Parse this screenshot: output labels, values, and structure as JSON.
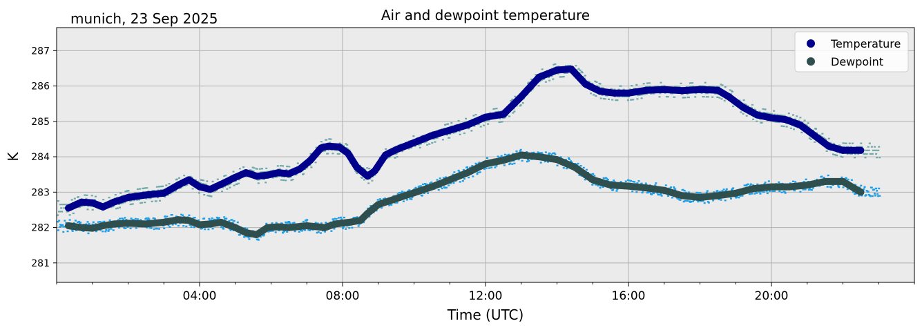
{
  "chart_data": {
    "type": "line",
    "title": "Air and dewpoint temperature",
    "subtitle": "munich, 23 Sep 2025",
    "xlabel": "Time (UTC)",
    "ylabel": "K",
    "xlim_hours": [
      0,
      24
    ],
    "ylim": [
      280.45,
      287.65
    ],
    "grid": true,
    "legend_position": "top-right",
    "x_ticks": [
      {
        "hour": 4,
        "label": "04:00"
      },
      {
        "hour": 8,
        "label": "08:00"
      },
      {
        "hour": 12,
        "label": "12:00"
      },
      {
        "hour": 16,
        "label": "16:00"
      },
      {
        "hour": 20,
        "label": "20:00"
      }
    ],
    "y_ticks": [
      {
        "value": 281,
        "label": "281"
      },
      {
        "value": 282,
        "label": "282"
      },
      {
        "value": 283,
        "label": "283"
      },
      {
        "value": 284,
        "label": "284"
      },
      {
        "value": 285,
        "label": "285"
      },
      {
        "value": 286,
        "label": "286"
      },
      {
        "value": 287,
        "label": "287"
      }
    ],
    "series": [
      {
        "name": "Temperature",
        "color": "#00008b",
        "raw_color": "#6fa8a8",
        "x": [
          0.33,
          0.7,
          1.0,
          1.3,
          1.6,
          2.0,
          2.5,
          3.0,
          3.4,
          3.7,
          4.0,
          4.3,
          4.6,
          5.0,
          5.3,
          5.6,
          5.9,
          6.2,
          6.5,
          6.8,
          7.1,
          7.4,
          7.6,
          7.9,
          8.15,
          8.4,
          8.7,
          8.9,
          9.2,
          9.5,
          10.0,
          10.5,
          11.0,
          11.5,
          12.0,
          12.5,
          13.0,
          13.5,
          14.0,
          14.4,
          14.8,
          15.2,
          15.6,
          16.0,
          16.5,
          17.0,
          17.5,
          18.0,
          18.5,
          18.8,
          19.2,
          19.6,
          20.0,
          20.4,
          20.8,
          21.2,
          21.6,
          22.0,
          22.5
        ],
        "values": [
          282.55,
          282.72,
          282.7,
          282.58,
          282.72,
          282.85,
          282.92,
          282.97,
          283.2,
          283.35,
          283.15,
          283.08,
          283.22,
          283.42,
          283.55,
          283.45,
          283.48,
          283.55,
          283.52,
          283.65,
          283.9,
          284.25,
          284.3,
          284.28,
          284.1,
          283.7,
          283.45,
          283.6,
          284.05,
          284.2,
          284.4,
          284.6,
          284.75,
          284.9,
          285.12,
          285.2,
          285.7,
          286.25,
          286.45,
          286.48,
          286.05,
          285.85,
          285.8,
          285.8,
          285.88,
          285.9,
          285.87,
          285.9,
          285.88,
          285.7,
          285.4,
          285.18,
          285.1,
          285.05,
          284.9,
          284.6,
          284.3,
          284.18,
          284.18
        ]
      },
      {
        "name": "Dewpoint",
        "color": "#2f4f4f",
        "raw_color": "#1e9ee8",
        "x": [
          0.33,
          0.7,
          1.0,
          1.3,
          1.6,
          2.0,
          2.5,
          3.0,
          3.4,
          3.7,
          4.0,
          4.3,
          4.6,
          5.0,
          5.3,
          5.6,
          5.9,
          6.2,
          6.5,
          7.0,
          7.5,
          7.8,
          8.2,
          8.5,
          8.7,
          9.0,
          9.3,
          9.6,
          10.0,
          10.5,
          11.0,
          11.5,
          12.0,
          12.5,
          13.0,
          13.5,
          14.0,
          14.5,
          15.0,
          15.5,
          16.0,
          16.5,
          17.0,
          17.5,
          18.0,
          18.5,
          19.0,
          19.5,
          20.0,
          20.5,
          21.0,
          21.5,
          22.0,
          22.5
        ],
        "values": [
          282.05,
          282.0,
          281.98,
          282.05,
          282.1,
          282.12,
          282.1,
          282.15,
          282.22,
          282.2,
          282.08,
          282.1,
          282.15,
          282.0,
          281.85,
          281.8,
          282.0,
          282.02,
          282.0,
          282.05,
          282.0,
          282.1,
          282.15,
          282.2,
          282.4,
          282.65,
          282.75,
          282.85,
          282.98,
          283.15,
          283.35,
          283.55,
          283.8,
          283.9,
          284.05,
          284.0,
          283.92,
          283.7,
          283.35,
          283.2,
          283.17,
          283.12,
          283.05,
          282.9,
          282.85,
          282.9,
          282.97,
          283.1,
          283.15,
          283.15,
          283.2,
          283.3,
          283.3,
          283.0
        ]
      }
    ]
  }
}
